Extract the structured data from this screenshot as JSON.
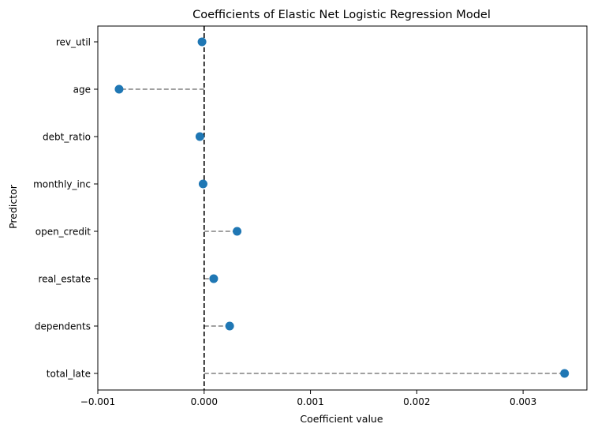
{
  "chart_data": {
    "type": "scatter",
    "style": "lollipop",
    "title": "Coefficients of Elastic Net Logistic Regression Model",
    "xlabel": "Coefficient value",
    "ylabel": "Predictor",
    "xlim": [
      -0.001,
      0.0036
    ],
    "xticks": [
      -0.001,
      0.0,
      0.001,
      0.002,
      0.003
    ],
    "xtick_labels": [
      "−0.001",
      "0.000",
      "0.001",
      "0.002",
      "0.003"
    ],
    "reference_line_x": 0,
    "grid": false,
    "categories": [
      "rev_util",
      "age",
      "debt_ratio",
      "monthly_inc",
      "open_credit",
      "real_estate",
      "dependents",
      "total_late"
    ],
    "values": [
      -2e-05,
      -0.0008,
      -4e-05,
      -1e-05,
      0.00031,
      9e-05,
      0.00024,
      0.00339
    ],
    "colors": {
      "point": "#1f77b4",
      "stem": "#808080",
      "reference": "#000000"
    }
  }
}
